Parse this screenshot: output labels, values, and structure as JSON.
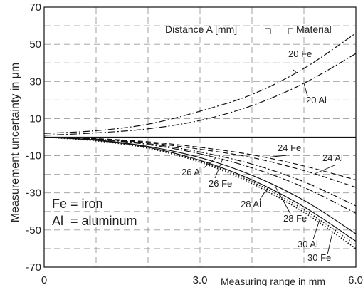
{
  "chart_data": {
    "type": "line",
    "title": "",
    "xlabel": "Measuring range in mm",
    "ylabel": "Measurement uncertainty in μm",
    "xlim": [
      0,
      6.0
    ],
    "ylim": [
      -70,
      70
    ],
    "x_ticks": [
      0,
      3.0,
      6.0
    ],
    "x_tick_labels": [
      "0",
      "3.0",
      "6.0"
    ],
    "y_ticks": [
      -70,
      -50,
      -30,
      -10,
      10,
      30,
      50,
      70
    ],
    "y_tick_labels": [
      "-70",
      "-50",
      "-30",
      "-10",
      "10",
      "30",
      "50",
      "70"
    ],
    "grid": true,
    "header_labels": {
      "distance": "Distance A [mm]",
      "material": "Material"
    },
    "legend_notes": [
      "Fe = iron",
      "Al  = aluminum"
    ],
    "series": [
      {
        "name": "20 Fe",
        "style": "dashdot",
        "x": [
          0,
          1,
          2,
          3,
          4,
          5,
          6
        ],
        "y": [
          2,
          3.5,
          7,
          14,
          23,
          37,
          56
        ]
      },
      {
        "name": "20 Al",
        "style": "dashdot",
        "x": [
          0,
          1,
          2,
          3,
          4,
          5,
          6
        ],
        "y": [
          1,
          2.3,
          4.5,
          9,
          17,
          29,
          45
        ]
      },
      {
        "name": "24 Fe",
        "style": "dashed",
        "x": [
          0,
          1,
          2,
          3,
          4,
          5,
          6
        ],
        "y": [
          0,
          -0.8,
          -2.5,
          -5.5,
          -9.5,
          -15.5,
          -23
        ]
      },
      {
        "name": "24 Al",
        "style": "dashed",
        "x": [
          0,
          1,
          2,
          3,
          4,
          5,
          6
        ],
        "y": [
          0,
          -1,
          -3,
          -6.5,
          -11,
          -18,
          -27
        ]
      },
      {
        "name": "26 Fe",
        "style": "dashdot",
        "x": [
          0,
          1,
          2,
          3,
          4,
          5,
          6
        ],
        "y": [
          0,
          -1,
          -3.5,
          -8,
          -14.5,
          -24,
          -37
        ]
      },
      {
        "name": "26 Al",
        "style": "dashdot",
        "x": [
          0,
          1,
          2,
          3,
          4,
          5,
          6
        ],
        "y": [
          0,
          -1.2,
          -4,
          -9,
          -16.5,
          -27,
          -41
        ]
      },
      {
        "name": "28 Fe",
        "style": "solid",
        "x": [
          0,
          1,
          2,
          3,
          4,
          5,
          6
        ],
        "y": [
          0,
          -1.5,
          -5,
          -11,
          -20.5,
          -34,
          -52
        ]
      },
      {
        "name": "28 Al",
        "style": "solid",
        "x": [
          0,
          1,
          2,
          3,
          4,
          5,
          6
        ],
        "y": [
          0,
          -1.7,
          -5.5,
          -12.5,
          -23,
          -37.5,
          -56
        ]
      },
      {
        "name": "30 Fe",
        "style": "dotted",
        "x": [
          0,
          1,
          2,
          3,
          4,
          5,
          6
        ],
        "y": [
          0,
          -2,
          -6,
          -13.5,
          -25,
          -40.5,
          -60
        ]
      },
      {
        "name": "30 Al",
        "style": "dotted",
        "x": [
          0,
          1,
          2,
          3,
          4,
          5,
          6
        ],
        "y": [
          0,
          -1.8,
          -5.8,
          -13,
          -24,
          -39,
          -58
        ]
      }
    ]
  }
}
